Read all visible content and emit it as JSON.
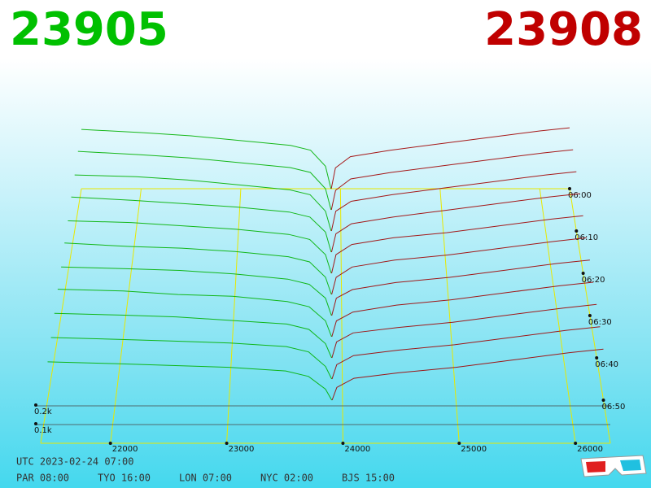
{
  "prices": {
    "bid": 23905,
    "ask": 23908
  },
  "clock": {
    "utc": "UTC 2023-02-24 07:00",
    "zones": [
      "PAR 08:00",
      "TYO 16:00",
      "LON 07:00",
      "NYC 02:00",
      "BJS 15:00"
    ]
  },
  "chart_data": {
    "type": "depth3d",
    "bid_color": "#00b000",
    "ask_color": "#a00000",
    "bid_x": [
      21400,
      22000,
      22500,
      23000,
      23500,
      23700,
      23850,
      23905
    ],
    "ask_x": [
      23908,
      23950,
      24100,
      24500,
      25000,
      25500,
      26000,
      26300
    ],
    "xlim": [
      21400,
      26300
    ],
    "xticks": [
      22000,
      23000,
      24000,
      25000,
      26000
    ],
    "zlim": [
      0,
      1
    ],
    "zticks": [
      {
        "value": 0.1,
        "label": "0.1k"
      },
      {
        "value": 0.2,
        "label": "0.2k"
      }
    ],
    "slices": [
      {
        "time": "06:00",
        "bids": [
          0.37,
          0.35,
          0.33,
          0.3,
          0.27,
          0.24,
          0.14,
          0
        ],
        "asks": [
          0,
          0.13,
          0.2,
          0.24,
          0.28,
          0.32,
          0.36,
          0.38
        ]
      },
      {
        "time": null,
        "bids": [
          0.36,
          0.34,
          0.32,
          0.29,
          0.26,
          0.23,
          0.13,
          0
        ],
        "asks": [
          0,
          0.12,
          0.19,
          0.23,
          0.27,
          0.31,
          0.35,
          0.37
        ]
      },
      {
        "time": "06:10",
        "bids": [
          0.34,
          0.33,
          0.31,
          0.28,
          0.25,
          0.22,
          0.12,
          0
        ],
        "asks": [
          0,
          0.12,
          0.18,
          0.22,
          0.26,
          0.3,
          0.34,
          0.36
        ]
      },
      {
        "time": null,
        "bids": [
          0.33,
          0.31,
          0.29,
          0.27,
          0.24,
          0.21,
          0.12,
          0
        ],
        "asks": [
          0,
          0.11,
          0.17,
          0.21,
          0.25,
          0.29,
          0.33,
          0.35
        ]
      },
      {
        "time": "06:20",
        "bids": [
          0.31,
          0.3,
          0.28,
          0.26,
          0.23,
          0.2,
          0.11,
          0
        ],
        "asks": [
          0,
          0.11,
          0.17,
          0.21,
          0.24,
          0.28,
          0.32,
          0.34
        ]
      },
      {
        "time": null,
        "bids": [
          0.3,
          0.28,
          0.27,
          0.25,
          0.22,
          0.19,
          0.1,
          0
        ],
        "asks": [
          0,
          0.1,
          0.16,
          0.2,
          0.23,
          0.27,
          0.31,
          0.33
        ]
      },
      {
        "time": "06:30",
        "bids": [
          0.28,
          0.27,
          0.26,
          0.24,
          0.21,
          0.18,
          0.1,
          0
        ],
        "asks": [
          0,
          0.1,
          0.15,
          0.19,
          0.22,
          0.26,
          0.3,
          0.32
        ]
      },
      {
        "time": null,
        "bids": [
          0.27,
          0.26,
          0.24,
          0.23,
          0.2,
          0.17,
          0.09,
          0
        ],
        "asks": [
          0,
          0.09,
          0.14,
          0.18,
          0.21,
          0.25,
          0.29,
          0.31
        ]
      },
      {
        "time": "06:40",
        "bids": [
          0.25,
          0.24,
          0.23,
          0.21,
          0.19,
          0.16,
          0.08,
          0
        ],
        "asks": [
          0,
          0.09,
          0.14,
          0.17,
          0.2,
          0.24,
          0.28,
          0.3
        ]
      },
      {
        "time": null,
        "bids": [
          0.23,
          0.22,
          0.21,
          0.2,
          0.18,
          0.15,
          0.07,
          0
        ],
        "asks": [
          0,
          0.08,
          0.13,
          0.16,
          0.19,
          0.23,
          0.27,
          0.29
        ]
      },
      {
        "time": "06:50",
        "bids": [
          0.21,
          0.2,
          0.19,
          0.18,
          0.16,
          0.13,
          0.06,
          0
        ],
        "asks": [
          0,
          0.07,
          0.12,
          0.15,
          0.18,
          0.22,
          0.26,
          0.28
        ]
      }
    ]
  }
}
